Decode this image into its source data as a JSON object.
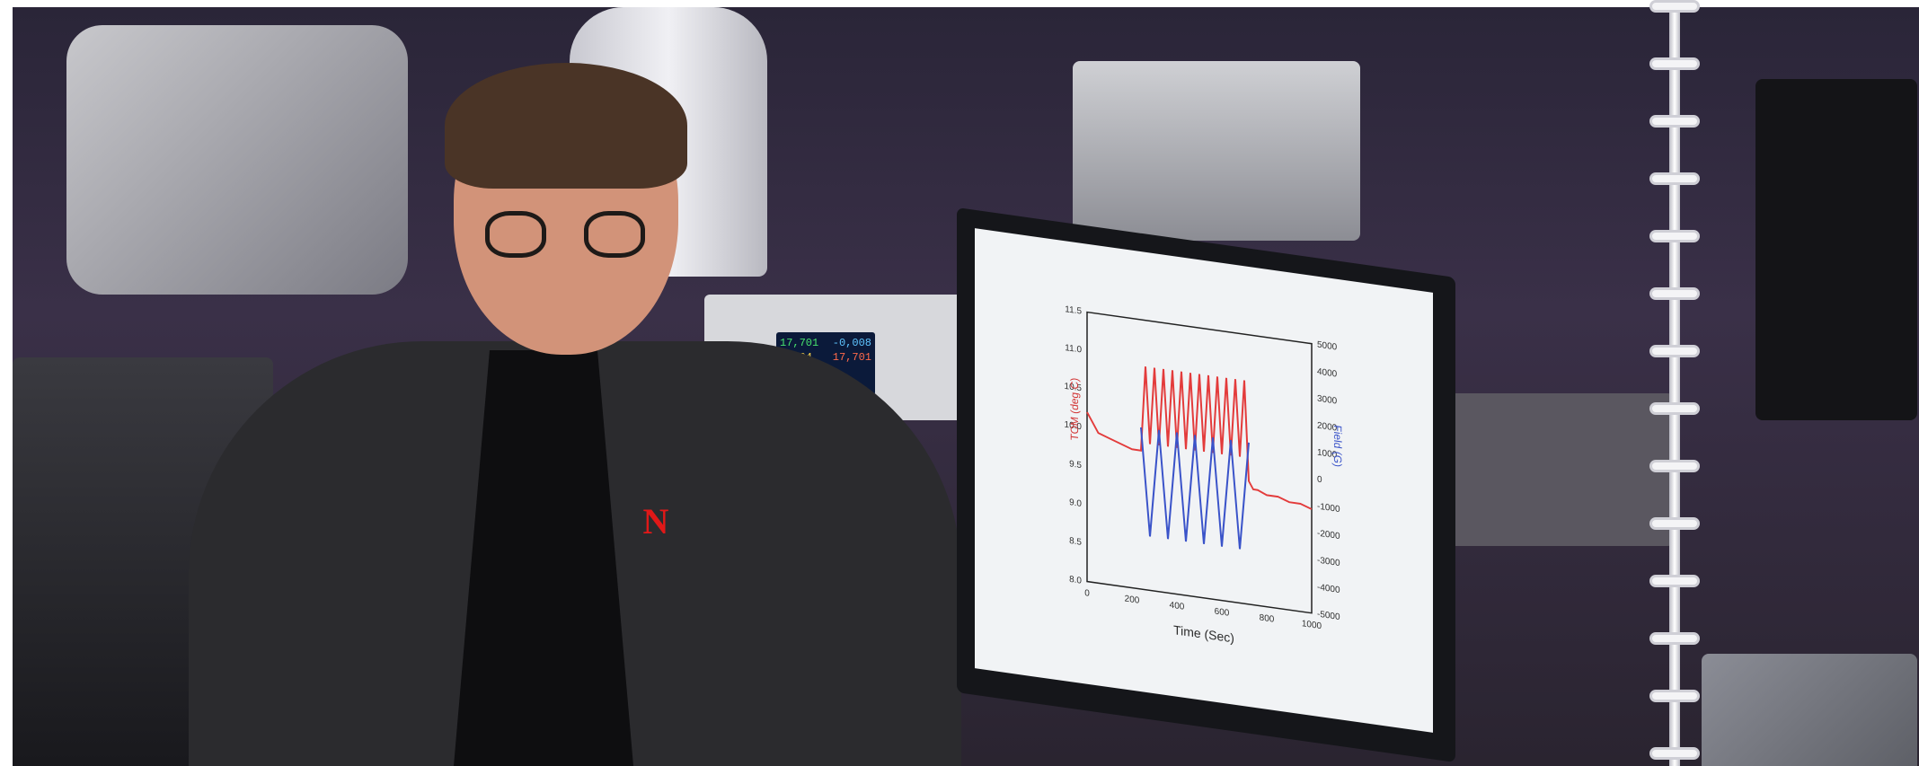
{
  "photo": {
    "description_colors": {
      "background": "#2a2538",
      "jacket": "#2b2b2e",
      "shirt": "#0e0e10",
      "skin": "#d29379",
      "hair": "#4a3426"
    },
    "logo_letter": "N"
  },
  "instrument_display": {
    "readout_1": "17,701",
    "readout_2": "-0,008",
    "readout_3": "0,004",
    "readout_4": "17,701"
  },
  "chart_data": {
    "type": "line",
    "xlabel": "Time (Sec)",
    "ylabel_left": "TOM (deg C)",
    "ylabel_right": "Field (G)",
    "xlim": [
      0,
      1000
    ],
    "ylim_left": [
      8.0,
      11.5
    ],
    "ylim_right": [
      -5000,
      5000
    ],
    "x_ticks": [
      "0",
      "200",
      "400",
      "600",
      "800",
      "1000"
    ],
    "y_left_ticks": [
      "8.0",
      "8.5",
      "9.0",
      "9.5",
      "10.0",
      "10.5",
      "11.0",
      "11.5"
    ],
    "y_right_ticks": [
      "-5000",
      "-4000",
      "-3000",
      "-2000",
      "-1000",
      "0",
      "1000",
      "2000",
      "3000",
      "4000",
      "5000"
    ],
    "series": [
      {
        "color": "#e33b3b",
        "axis": "left",
        "x": [
          0,
          50,
          100,
          150,
          200,
          240,
          260,
          280,
          300,
          320,
          340,
          360,
          380,
          400,
          420,
          440,
          460,
          480,
          500,
          520,
          540,
          560,
          580,
          600,
          620,
          640,
          660,
          680,
          700,
          720,
          740,
          760,
          800,
          850,
          900,
          950,
          1000
        ],
        "values": [
          10.2,
          9.95,
          9.9,
          9.85,
          9.8,
          9.8,
          10.9,
          9.9,
          10.9,
          9.9,
          10.9,
          9.9,
          10.9,
          9.9,
          10.9,
          9.9,
          10.9,
          9.9,
          10.9,
          9.9,
          10.9,
          9.9,
          10.9,
          9.9,
          10.9,
          9.9,
          10.9,
          9.9,
          10.9,
          9.6,
          9.5,
          9.5,
          9.45,
          9.45,
          9.4,
          9.4,
          9.35
        ]
      },
      {
        "color": "#3a53c9",
        "axis": "right",
        "x": [
          240,
          260,
          280,
          300,
          320,
          340,
          360,
          380,
          400,
          420,
          440,
          460,
          480,
          500,
          520,
          540,
          560,
          580,
          600,
          620,
          640,
          660,
          680,
          700,
          720
        ],
        "values": [
          1000,
          -1000,
          -3000,
          -1000,
          1000,
          -1000,
          -3000,
          -1000,
          1000,
          -1000,
          -3000,
          -1000,
          1000,
          -1000,
          -3000,
          -1000,
          1000,
          -1000,
          -3000,
          -1000,
          1000,
          -1000,
          -3000,
          -1000,
          1000
        ]
      }
    ]
  }
}
